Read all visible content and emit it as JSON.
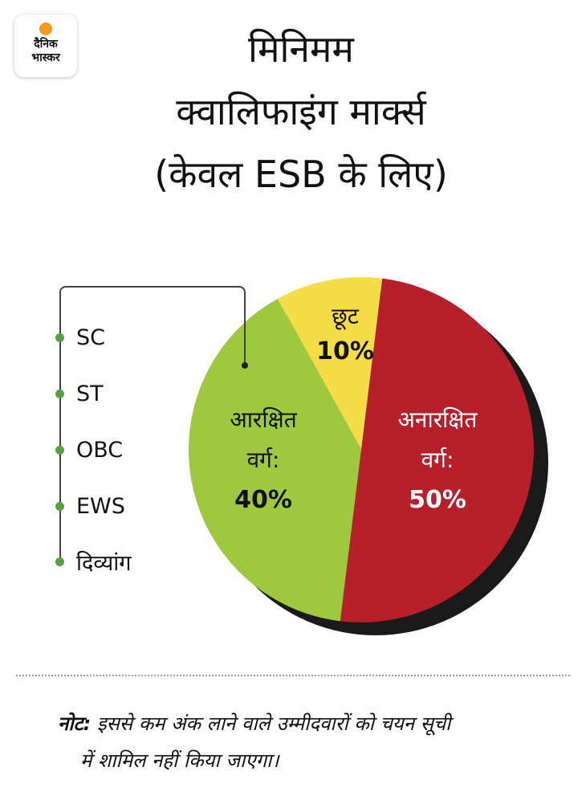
{
  "logo": {
    "line1": "दैनिक",
    "line2": "भास्कर"
  },
  "title": {
    "line1": "मिनिमम",
    "line2": "क्वालिफाइंग मार्क्स",
    "line3": "(केवल ESB के लिए)"
  },
  "legend": {
    "items": [
      "SC",
      "ST",
      "OBC",
      "EWS",
      "दिव्यांग"
    ]
  },
  "colors": {
    "unreserved": "#b7202a",
    "reserved": "#9ec93e",
    "relaxation": "#f6dc46",
    "shadow": "#1a1a1a",
    "legend_dot": "#58a13f"
  },
  "chart_data": {
    "type": "pie",
    "slices": [
      {
        "name": "अनारक्षित वर्ग:",
        "value": 50,
        "label": "50%",
        "color": "#b7202a"
      },
      {
        "name": "आरक्षित वर्ग:",
        "value": 40,
        "label": "40%",
        "color": "#9ec93e"
      },
      {
        "name": "छूट",
        "value": 10,
        "label": "10%",
        "color": "#f6dc46"
      }
    ],
    "slice_text": {
      "unreserved_line1": "अनारक्षित",
      "unreserved_line2": "वर्ग:",
      "reserved_line1": "आरक्षित",
      "reserved_line2": "वर्ग:",
      "relaxation_line1": "छूट"
    }
  },
  "note": {
    "label": "नोट:",
    "text1": "इससे कम अंक लाने वाले उम्मीदवारों को चयन सूची",
    "text2": "में शामिल नहीं किया जाएगा।"
  }
}
